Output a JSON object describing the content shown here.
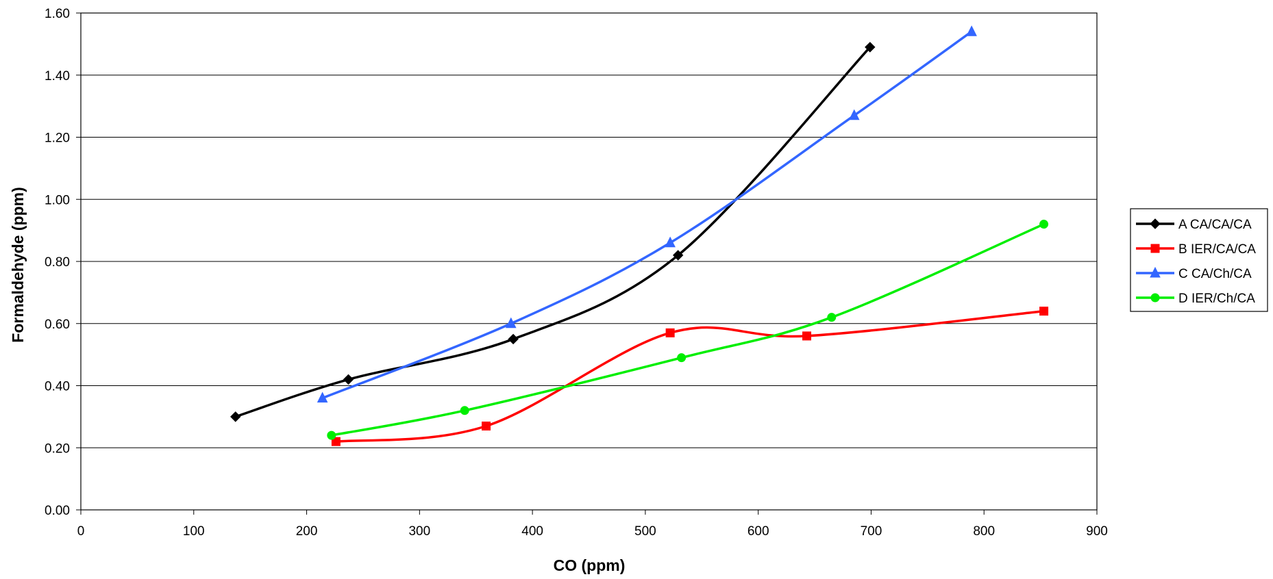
{
  "chart_data": {
    "type": "line",
    "title": "",
    "xlabel": "CO (ppm)",
    "ylabel": "Formaldehyde (ppm)",
    "xlim": [
      0,
      900
    ],
    "ylim": [
      0,
      1.6
    ],
    "x_ticks": [
      0,
      100,
      200,
      300,
      400,
      500,
      600,
      700,
      800,
      900
    ],
    "y_ticks": [
      "0.00",
      "0.20",
      "0.40",
      "0.60",
      "0.80",
      "1.00",
      "1.20",
      "1.40",
      "1.60"
    ],
    "grid": "horizontal",
    "legend_position": "right",
    "series": [
      {
        "name": "A CA/CA/CA",
        "color": "#000000",
        "marker": "diamond",
        "x": [
          137,
          237,
          383,
          529,
          699
        ],
        "y": [
          0.3,
          0.42,
          0.55,
          0.82,
          1.49
        ]
      },
      {
        "name": "B IER/CA/CA",
        "color": "#ff0000",
        "marker": "square",
        "x": [
          226,
          359,
          522,
          643,
          853
        ],
        "y": [
          0.22,
          0.27,
          0.57,
          0.56,
          0.64
        ]
      },
      {
        "name": "C CA/Ch/CA",
        "color": "#3366ff",
        "marker": "triangle",
        "x": [
          214,
          381,
          522,
          685,
          789
        ],
        "y": [
          0.36,
          0.6,
          0.86,
          1.27,
          1.54
        ]
      },
      {
        "name": "D IER/Ch/CA",
        "color": "#00ee00",
        "marker": "circle",
        "x": [
          222,
          340,
          532,
          665,
          853
        ],
        "y": [
          0.24,
          0.32,
          0.49,
          0.62,
          0.92
        ]
      }
    ]
  }
}
